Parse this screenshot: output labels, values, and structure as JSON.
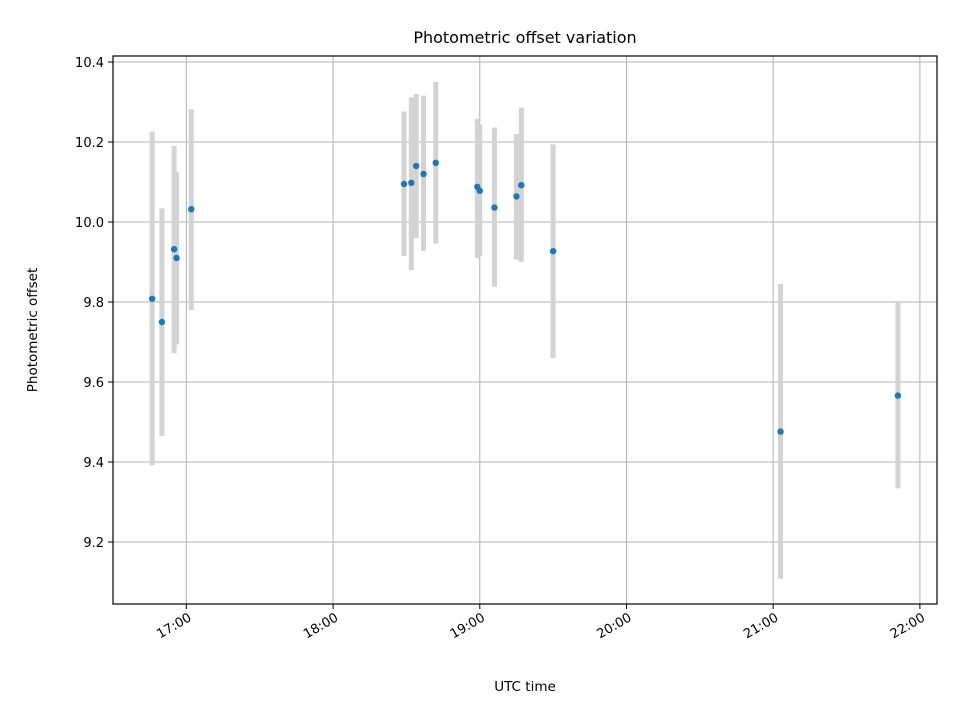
{
  "chart_data": {
    "type": "scatter",
    "title": "Photometric offset variation",
    "xlabel": "UTC time",
    "ylabel": "Photometric offset",
    "xlim": [
      "16:30",
      "22:07"
    ],
    "ylim": [
      9.045,
      10.415
    ],
    "x_ticks": [
      "17:00",
      "18:00",
      "19:00",
      "20:00",
      "21:00",
      "22:00"
    ],
    "y_ticks": [
      9.2,
      9.4,
      9.6,
      9.8,
      10.0,
      10.2,
      10.4
    ],
    "y_tick_labels": [
      "9.2",
      "9.4",
      "9.6",
      "9.8",
      "10.0",
      "10.2",
      "10.4"
    ],
    "grid": true,
    "marker_color": "#1f77b4",
    "errorbar_color": "#d3d3d3",
    "points": [
      {
        "x": "16:46",
        "y": 9.808,
        "yerr_low": 9.392,
        "yerr_high": 10.226
      },
      {
        "x": "16:50",
        "y": 9.75,
        "yerr_low": 9.465,
        "yerr_high": 10.034
      },
      {
        "x": "16:55",
        "y": 9.932,
        "yerr_low": 9.672,
        "yerr_high": 10.19
      },
      {
        "x": "16:56",
        "y": 9.91,
        "yerr_low": 9.694,
        "yerr_high": 10.126
      },
      {
        "x": "17:02",
        "y": 10.032,
        "yerr_low": 9.78,
        "yerr_high": 10.282
      },
      {
        "x": "18:29",
        "y": 10.095,
        "yerr_low": 9.915,
        "yerr_high": 10.276
      },
      {
        "x": "18:32",
        "y": 10.098,
        "yerr_low": 9.88,
        "yerr_high": 10.312
      },
      {
        "x": "18:34",
        "y": 10.14,
        "yerr_low": 9.96,
        "yerr_high": 10.32
      },
      {
        "x": "18:37",
        "y": 10.12,
        "yerr_low": 9.928,
        "yerr_high": 10.316
      },
      {
        "x": "18:42",
        "y": 10.148,
        "yerr_low": 9.946,
        "yerr_high": 10.35
      },
      {
        "x": "18:59",
        "y": 10.088,
        "yerr_low": 9.91,
        "yerr_high": 10.258
      },
      {
        "x": "19:00",
        "y": 10.078,
        "yerr_low": 9.915,
        "yerr_high": 10.244
      },
      {
        "x": "19:06",
        "y": 10.036,
        "yerr_low": 9.838,
        "yerr_high": 10.236
      },
      {
        "x": "19:15",
        "y": 10.064,
        "yerr_low": 9.906,
        "yerr_high": 10.22
      },
      {
        "x": "19:17",
        "y": 10.092,
        "yerr_low": 9.9,
        "yerr_high": 10.286
      },
      {
        "x": "19:30",
        "y": 9.927,
        "yerr_low": 9.66,
        "yerr_high": 10.194
      },
      {
        "x": "21:03",
        "y": 9.476,
        "yerr_low": 9.108,
        "yerr_high": 9.845
      },
      {
        "x": "21:51",
        "y": 9.566,
        "yerr_low": 9.334,
        "yerr_high": 9.8
      }
    ]
  }
}
